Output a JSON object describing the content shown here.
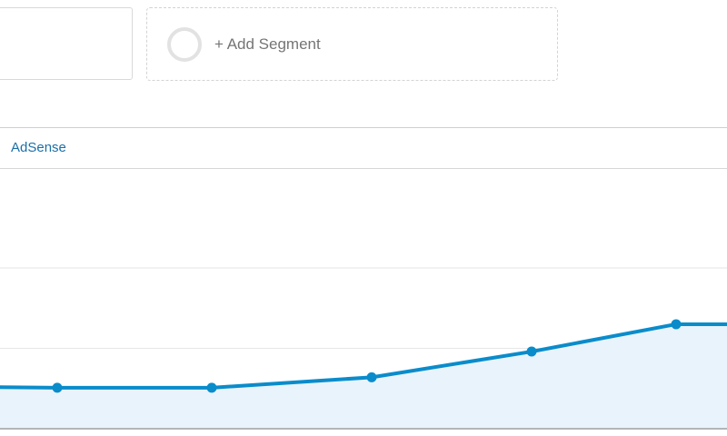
{
  "segments": {
    "add_segment_label": "+ Add Segment"
  },
  "tabs": {
    "adsense_label": "AdSense"
  },
  "colors": {
    "line": "#0a8ccb",
    "area": "#e9f3fb",
    "grid": "#e6e6e6",
    "axis": "#9e9e9e",
    "tab_link": "#1a6fa8"
  },
  "chart_data": {
    "type": "area",
    "title": "",
    "xlabel": "",
    "ylabel": "",
    "ylim": [
      0,
      3
    ],
    "grid": true,
    "series": [
      {
        "values": [
          0.53,
          0.51,
          0.51,
          0.64,
          0.96,
          1.3,
          1.3
        ]
      }
    ]
  }
}
